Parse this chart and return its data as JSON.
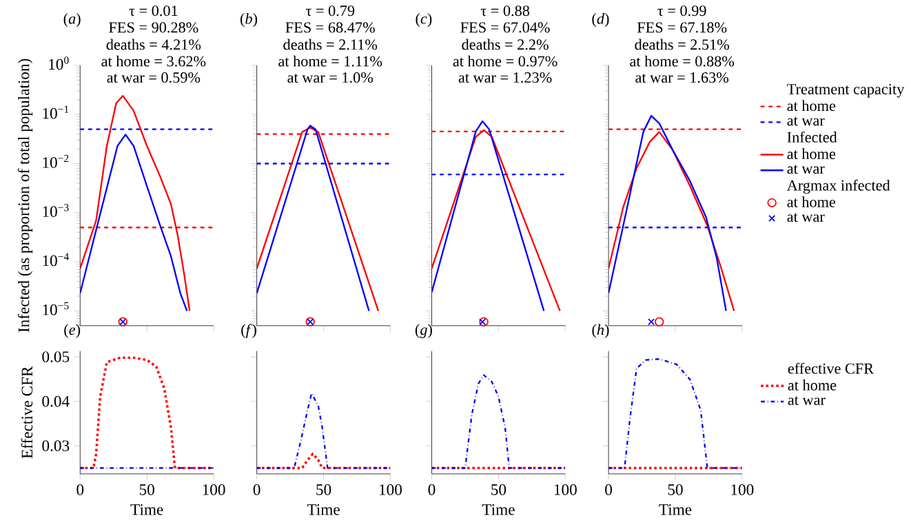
{
  "chart_data": [
    {
      "type": "line",
      "title": "τ = 0.01",
      "annotations": [
        "(*a*)",
        "FES = 90.28%",
        "deaths = 4.21%",
        "at home = 3.62%",
        "at war = 0.59%"
      ],
      "ylabel": "Infected (as proportion of total population)",
      "log": "y",
      "xlim": [
        0,
        100
      ],
      "xticks": [
        0,
        50,
        100
      ],
      "ylim": [
        5e-06,
        1
      ],
      "yticks": [
        {
          "value": 1e-05,
          "label": "10$^{−5}$"
        },
        {
          "value": 0.0001,
          "label": "10$^{−4}$"
        },
        {
          "value": 0.001,
          "label": "10$^{−3}$"
        },
        {
          "value": 0.01,
          "label": "10$^{−2}$"
        },
        {
          "value": 0.1,
          "label": "10$^{−1}$"
        },
        {
          "value": 1,
          "label": "10$^{0}$"
        }
      ],
      "tick_labels": "y",
      "ref_lines": [
        {
          "axis": "y",
          "value": 0.0005,
          "color": "#ff0000",
          "line_style": "dashed"
        },
        {
          "axis": "y",
          "value": 0.05,
          "color": "#0000ff",
          "line_style": "dashed"
        }
      ],
      "series": [
        {
          "color": "#ff0000",
          "x": [
            0,
            12,
            20,
            27,
            32,
            40,
            50,
            60,
            68,
            73,
            78,
            82
          ],
          "values": [
            7.3e-05,
            0.0007,
            0.023,
            0.17,
            0.24,
            0.12,
            0.023,
            0.0054,
            0.0015,
            0.00035,
            5.4e-05,
            1e-05
          ]
        },
        {
          "color": "#0000ff",
          "x": [
            0,
            28,
            34,
            40,
            50,
            60,
            68,
            75,
            80
          ],
          "values": [
            2.3e-05,
            0.023,
            0.039,
            0.023,
            0.0035,
            0.00054,
            0.00013,
            2.3e-05,
            1e-05
          ]
        },
        {
          "type": "scatter",
          "marker": "circle",
          "color": "#ff0000",
          "x": [
            32
          ],
          "values": [
            6e-06
          ]
        },
        {
          "type": "scatter",
          "marker": "cross",
          "color": "#0000ff",
          "x": [
            32
          ],
          "values": [
            6e-06
          ]
        }
      ]
    },
    {
      "type": "line",
      "title": "τ = 0.79",
      "annotations": [
        "(*b*)",
        "FES = 68.47%",
        "deaths = 2.11%",
        "at home = 1.11%",
        "at war = 1.0%"
      ],
      "log": "y",
      "xlim": [
        0,
        100
      ],
      "xticks": [
        0,
        50,
        100
      ],
      "ylim": [
        5e-06,
        1
      ],
      "yticks": [
        {
          "value": 1e-05,
          "label": null
        },
        {
          "value": 0.0001,
          "label": null
        },
        {
          "value": 0.001,
          "label": null
        },
        {
          "value": 0.01,
          "label": null
        },
        {
          "value": 0.1,
          "label": null
        },
        {
          "value": 1,
          "label": null
        }
      ],
      "tick_labels": false,
      "ref_lines": [
        {
          "axis": "y",
          "value": 0.04,
          "color": "#ff0000",
          "line_style": "dashed"
        },
        {
          "axis": "y",
          "value": 0.01,
          "color": "#0000ff",
          "line_style": "dashed"
        }
      ],
      "series": [
        {
          "color": "#ff0000",
          "x": [
            0,
            34,
            40,
            46,
            91
          ],
          "values": [
            7.3e-05,
            0.044,
            0.054,
            0.044,
            1e-05
          ]
        },
        {
          "color": "#0000ff",
          "x": [
            0,
            38,
            40,
            44,
            84
          ],
          "values": [
            2.3e-05,
            0.05,
            0.059,
            0.05,
            1e-05
          ]
        },
        {
          "type": "scatter",
          "marker": "circle",
          "color": "#ff0000",
          "x": [
            40
          ],
          "values": [
            6e-06
          ]
        },
        {
          "type": "scatter",
          "marker": "cross",
          "color": "#0000ff",
          "x": [
            40
          ],
          "values": [
            6e-06
          ]
        }
      ]
    },
    {
      "type": "line",
      "title": "τ = 0.88",
      "annotations": [
        "(*c*)",
        "FES = 67.04%",
        "deaths = 2.2%",
        "at home = 0.97%",
        "at war = 1.23%"
      ],
      "log": "y",
      "xlim": [
        0,
        100
      ],
      "xticks": [
        0,
        50,
        100
      ],
      "ylim": [
        5e-06,
        1
      ],
      "yticks": [
        {
          "value": 1e-05,
          "label": null
        },
        {
          "value": 0.0001,
          "label": null
        },
        {
          "value": 0.001,
          "label": null
        },
        {
          "value": 0.01,
          "label": null
        },
        {
          "value": 0.1,
          "label": null
        },
        {
          "value": 1,
          "label": null
        }
      ],
      "tick_labels": false,
      "ref_lines": [
        {
          "axis": "y",
          "value": 0.045,
          "color": "#ff0000",
          "line_style": "dashed"
        },
        {
          "axis": "y",
          "value": 0.006,
          "color": "#0000ff",
          "line_style": "dashed"
        }
      ],
      "series": [
        {
          "color": "#ff0000",
          "x": [
            0,
            33,
            39,
            45,
            96
          ],
          "values": [
            7.3e-05,
            0.035,
            0.048,
            0.035,
            1e-05
          ]
        },
        {
          "color": "#0000ff",
          "x": [
            0,
            33,
            38,
            43,
            84
          ],
          "values": [
            2.4e-05,
            0.045,
            0.073,
            0.05,
            1e-05
          ]
        },
        {
          "type": "scatter",
          "marker": "circle",
          "color": "#ff0000",
          "x": [
            39
          ],
          "values": [
            6e-06
          ]
        },
        {
          "type": "scatter",
          "marker": "cross",
          "color": "#0000ff",
          "x": [
            38
          ],
          "values": [
            6e-06
          ]
        }
      ]
    },
    {
      "type": "line",
      "title": "τ = 0.99",
      "annotations": [
        "(*d*)",
        "FES = 67.18%",
        "deaths = 2.51%",
        "at home = 0.88%",
        "at war = 1.63%",
        "Infected",
        "Argmax infected"
      ],
      "log": "y",
      "xlim": [
        0,
        100
      ],
      "xticks": [
        0,
        50,
        100
      ],
      "ylim": [
        5e-06,
        1
      ],
      "yticks": [
        {
          "value": 1e-05,
          "label": null
        },
        {
          "value": 0.0001,
          "label": null
        },
        {
          "value": 0.001,
          "label": null
        },
        {
          "value": 0.01,
          "label": null
        },
        {
          "value": 0.1,
          "label": null
        },
        {
          "value": 1,
          "label": null
        }
      ],
      "tick_labels": false,
      "legend": "right",
      "legend_title": "Treatment capacity",
      "ref_lines": [
        {
          "axis": "y",
          "value": 0.05,
          "label": "at home",
          "color": "#ff0000",
          "line_style": "dashed"
        },
        {
          "axis": "y",
          "value": 0.0005,
          "label": "at war",
          "color": "#0000ff",
          "line_style": "dashed"
        }
      ],
      "series": [
        {
          "name": "at home",
          "color": "#ff0000",
          "x": [
            0,
            11,
            21,
            31,
            38,
            48,
            61,
            74,
            84,
            94
          ],
          "values": [
            7.3e-05,
            0.0013,
            0.0081,
            0.028,
            0.044,
            0.019,
            0.0035,
            0.00054,
            8e-05,
            1e-05
          ]
        },
        {
          "name": "at war",
          "color": "#0000ff",
          "x": [
            0,
            14,
            26,
            32,
            38,
            48,
            61,
            73,
            81,
            88
          ],
          "values": [
            2.3e-05,
            0.0013,
            0.044,
            0.094,
            0.066,
            0.019,
            0.0044,
            0.00081,
            0.00012,
            1e-05
          ]
        },
        {
          "name": "at home",
          "type": "scatter",
          "marker": "circle",
          "color": "#ff0000",
          "x": [
            38
          ],
          "values": [
            6e-06
          ]
        },
        {
          "name": "at war",
          "type": "scatter",
          "marker": "cross",
          "color": "#0000ff",
          "x": [
            32
          ],
          "values": [
            6e-06
          ]
        }
      ]
    },
    {
      "type": "line",
      "annotations": [
        "(*e*)"
      ],
      "xlabel": "Time",
      "ylabel": "Effective CFR",
      "xlim": [
        0,
        100
      ],
      "xticks": [
        0,
        50,
        100
      ],
      "ylim": [
        0.0237,
        0.0513
      ],
      "yticks": [
        0.03,
        0.04,
        0.05
      ],
      "series": [
        {
          "color": "#ff0000",
          "line_style": "dotted",
          "x": [
            0,
            10,
            12,
            15,
            20,
            30,
            40,
            50,
            57,
            63,
            68,
            71,
            100
          ],
          "values": [
            0.025,
            0.025,
            0.0282,
            0.041,
            0.0488,
            0.0498,
            0.0498,
            0.0493,
            0.0478,
            0.0429,
            0.0341,
            0.025,
            0.025
          ]
        },
        {
          "color": "#0000ff",
          "line_style": "dashdot",
          "x": [
            0,
            100
          ],
          "values": [
            0.025,
            0.025
          ]
        }
      ]
    },
    {
      "type": "line",
      "annotations": [
        "(*f*)"
      ],
      "xlabel": "Time",
      "xlim": [
        0,
        100
      ],
      "xticks": [
        0,
        50,
        100
      ],
      "ylim": [
        0.0237,
        0.0513
      ],
      "yticks": [
        0.03,
        0.04,
        0.05
      ],
      "tick_labels": "x",
      "series": [
        {
          "color": "#ff0000",
          "line_style": "dotted",
          "x": [
            0,
            34,
            38,
            42,
            46,
            49,
            100
          ],
          "values": [
            0.025,
            0.025,
            0.0268,
            0.0282,
            0.0268,
            0.025,
            0.025
          ]
        },
        {
          "color": "#0000ff",
          "line_style": "dashdot",
          "x": [
            0,
            28,
            33,
            38,
            41,
            46,
            49,
            53,
            100
          ],
          "values": [
            0.025,
            0.025,
            0.0312,
            0.038,
            0.0418,
            0.039,
            0.0341,
            0.025,
            0.025
          ]
        }
      ]
    },
    {
      "type": "line",
      "annotations": [
        "(*g*)"
      ],
      "xlabel": "Time",
      "xlim": [
        0,
        100
      ],
      "xticks": [
        0,
        50,
        100
      ],
      "ylim": [
        0.0237,
        0.0513
      ],
      "yticks": [
        0.03,
        0.04,
        0.05
      ],
      "tick_labels": "x",
      "series": [
        {
          "color": "#ff0000",
          "line_style": "dotted",
          "x": [
            0,
            100
          ],
          "values": [
            0.025,
            0.025
          ]
        },
        {
          "color": "#0000ff",
          "line_style": "dashdot",
          "x": [
            0,
            25,
            30,
            35,
            39,
            45,
            50,
            55,
            58,
            100
          ],
          "values": [
            0.025,
            0.025,
            0.037,
            0.044,
            0.0459,
            0.0444,
            0.041,
            0.034,
            0.025,
            0.025
          ]
        }
      ]
    },
    {
      "type": "line",
      "annotations": [
        "(*h*)"
      ],
      "xlabel": "Time",
      "xlim": [
        0,
        100
      ],
      "xticks": [
        0,
        50,
        100
      ],
      "ylim": [
        0.0237,
        0.0513
      ],
      "yticks": [
        0.03,
        0.04,
        0.05
      ],
      "tick_labels": "x",
      "legend": "right",
      "legend_title": "effective CFR",
      "series": [
        {
          "name": "at home",
          "color": "#ff0000",
          "line_style": "dotted",
          "x": [
            0,
            100
          ],
          "values": [
            0.025,
            0.025
          ]
        },
        {
          "name": "at war",
          "color": "#0000ff",
          "line_style": "dashdot",
          "x": [
            0,
            12,
            16,
            21,
            28,
            38,
            51,
            61,
            69,
            74,
            100
          ],
          "values": [
            0.025,
            0.025,
            0.036,
            0.0474,
            0.0493,
            0.0495,
            0.0483,
            0.0449,
            0.038,
            0.025,
            0.025
          ]
        }
      ]
    }
  ]
}
